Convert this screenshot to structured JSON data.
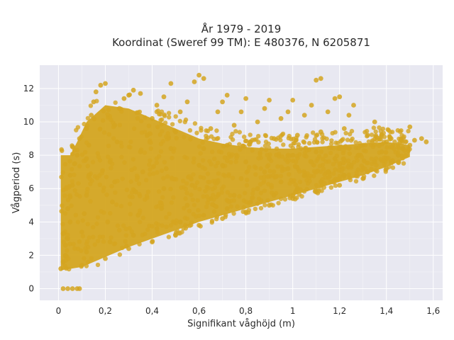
{
  "chart_data": {
    "type": "scatter",
    "title": "År 1979 - 2019",
    "subtitle": "Koordinat (Sweref 99 TM): E 480376, N 6205871",
    "xlabel": "Signifikant våghöjd (m)",
    "ylabel": "Vågperiod (s)",
    "xlim": [
      -0.08,
      1.64
    ],
    "ylim": [
      -0.7,
      13.4
    ],
    "x_ticks": [
      0,
      0.2,
      0.4,
      0.6,
      0.8,
      1,
      1.2,
      1.4,
      1.6
    ],
    "x_tick_labels": [
      "0",
      "0,2",
      "0,4",
      "0,6",
      "0,8",
      "1",
      "1,2",
      "1,4",
      "1,6"
    ],
    "y_ticks": [
      0,
      2,
      4,
      6,
      8,
      10,
      12
    ],
    "y_tick_labels": [
      "0",
      "2",
      "4",
      "6",
      "8",
      "10",
      "12"
    ],
    "grid": true,
    "background_color": "#e8e8f1",
    "marker_color": "#d4a520",
    "series": [
      {
        "points": [
          [
            0.02,
            0
          ],
          [
            0.04,
            0
          ],
          [
            0.06,
            0
          ],
          [
            0.08,
            0
          ],
          [
            0.09,
            0
          ],
          [
            0.01,
            1.2
          ],
          [
            0.02,
            1.6
          ],
          [
            0.03,
            2.0
          ],
          [
            0.03,
            2.6
          ],
          [
            0.04,
            3.0
          ],
          [
            0.02,
            3.3
          ],
          [
            0.05,
            4.0
          ],
          [
            0.04,
            4.8
          ],
          [
            0.05,
            5.5
          ],
          [
            0.06,
            6.2
          ],
          [
            0.05,
            6.8
          ],
          [
            0.07,
            7.5
          ],
          [
            0.08,
            8.0
          ],
          [
            0.06,
            8.5
          ],
          [
            0.09,
            9.0
          ],
          [
            0.1,
            1.4
          ],
          [
            0.12,
            2.2
          ],
          [
            0.1,
            3.4
          ],
          [
            0.11,
            4.5
          ],
          [
            0.12,
            5.6
          ],
          [
            0.13,
            6.8
          ],
          [
            0.12,
            7.8
          ],
          [
            0.13,
            8.6
          ],
          [
            0.12,
            9.6
          ],
          [
            0.14,
            10.4
          ],
          [
            0.15,
            11.2
          ],
          [
            0.16,
            11.8
          ],
          [
            0.18,
            12.2
          ],
          [
            0.2,
            12.3
          ],
          [
            0.2,
            1.8
          ],
          [
            0.22,
            2.8
          ],
          [
            0.21,
            4.0
          ],
          [
            0.23,
            5.2
          ],
          [
            0.24,
            6.4
          ],
          [
            0.22,
            7.6
          ],
          [
            0.25,
            8.8
          ],
          [
            0.24,
            9.8
          ],
          [
            0.26,
            10.8
          ],
          [
            0.28,
            11.4
          ],
          [
            0.3,
            11.6
          ],
          [
            0.32,
            11.9
          ],
          [
            0.35,
            11.7
          ],
          [
            0.3,
            2.4
          ],
          [
            0.32,
            3.2
          ],
          [
            0.34,
            4.4
          ],
          [
            0.33,
            5.8
          ],
          [
            0.36,
            7.0
          ],
          [
            0.35,
            8.2
          ],
          [
            0.38,
            9.2
          ],
          [
            0.4,
            10.2
          ],
          [
            0.42,
            11.0
          ],
          [
            0.45,
            11.5
          ],
          [
            0.48,
            12.3
          ],
          [
            0.4,
            2.8
          ],
          [
            0.42,
            3.6
          ],
          [
            0.44,
            4.8
          ],
          [
            0.45,
            6.0
          ],
          [
            0.46,
            7.2
          ],
          [
            0.48,
            8.4
          ],
          [
            0.5,
            9.4
          ],
          [
            0.52,
            10.6
          ],
          [
            0.55,
            11.2
          ],
          [
            0.58,
            12.4
          ],
          [
            0.6,
            12.8
          ],
          [
            0.62,
            12.6
          ],
          [
            0.5,
            3.2
          ],
          [
            0.52,
            4.0
          ],
          [
            0.55,
            5.0
          ],
          [
            0.57,
            6.2
          ],
          [
            0.6,
            7.4
          ],
          [
            0.62,
            8.4
          ],
          [
            0.65,
            9.6
          ],
          [
            0.68,
            10.6
          ],
          [
            0.7,
            11.2
          ],
          [
            0.72,
            11.6
          ],
          [
            0.6,
            3.8
          ],
          [
            0.62,
            4.4
          ],
          [
            0.65,
            5.4
          ],
          [
            0.68,
            6.4
          ],
          [
            0.7,
            7.4
          ],
          [
            0.72,
            8.6
          ],
          [
            0.75,
            9.8
          ],
          [
            0.78,
            10.6
          ],
          [
            0.8,
            11.4
          ],
          [
            0.7,
            4.2
          ],
          [
            0.72,
            4.8
          ],
          [
            0.75,
            5.6
          ],
          [
            0.78,
            6.6
          ],
          [
            0.8,
            7.6
          ],
          [
            0.82,
            8.8
          ],
          [
            0.85,
            10.0
          ],
          [
            0.88,
            10.8
          ],
          [
            0.9,
            11.3
          ],
          [
            0.8,
            4.6
          ],
          [
            0.82,
            5.2
          ],
          [
            0.85,
            6.0
          ],
          [
            0.88,
            7.0
          ],
          [
            0.9,
            7.8
          ],
          [
            0.92,
            9.0
          ],
          [
            0.95,
            10.2
          ],
          [
            0.98,
            10.6
          ],
          [
            1.0,
            11.3
          ],
          [
            0.9,
            5.0
          ],
          [
            0.92,
            5.6
          ],
          [
            0.95,
            6.4
          ],
          [
            0.98,
            7.2
          ],
          [
            1.0,
            8.0
          ],
          [
            1.02,
            9.2
          ],
          [
            1.05,
            10.4
          ],
          [
            1.08,
            11.0
          ],
          [
            1.1,
            12.5
          ],
          [
            1.12,
            12.6
          ],
          [
            1.0,
            5.4
          ],
          [
            1.02,
            6.0
          ],
          [
            1.05,
            6.8
          ],
          [
            1.08,
            7.6
          ],
          [
            1.1,
            8.2
          ],
          [
            1.12,
            9.4
          ],
          [
            1.15,
            10.6
          ],
          [
            1.18,
            11.4
          ],
          [
            1.2,
            11.5
          ],
          [
            1.1,
            5.8
          ],
          [
            1.12,
            6.4
          ],
          [
            1.15,
            7.0
          ],
          [
            1.18,
            7.8
          ],
          [
            1.2,
            8.4
          ],
          [
            1.22,
            9.6
          ],
          [
            1.24,
            10.4
          ],
          [
            1.26,
            11.0
          ],
          [
            1.2,
            6.2
          ],
          [
            1.22,
            6.8
          ],
          [
            1.25,
            7.4
          ],
          [
            1.28,
            8.0
          ],
          [
            1.3,
            8.6
          ],
          [
            1.32,
            9.2
          ],
          [
            1.35,
            10.0
          ],
          [
            1.3,
            6.6
          ],
          [
            1.32,
            7.0
          ],
          [
            1.35,
            7.6
          ],
          [
            1.38,
            8.2
          ],
          [
            1.4,
            8.8
          ],
          [
            1.42,
            9.0
          ],
          [
            1.4,
            7.2
          ],
          [
            1.42,
            7.6
          ],
          [
            1.45,
            8.0
          ],
          [
            1.47,
            8.4
          ],
          [
            1.5,
            8.6
          ],
          [
            1.52,
            8.9
          ],
          [
            1.55,
            9.0
          ],
          [
            1.57,
            8.8
          ],
          [
            1.5,
            9.7
          ]
        ]
      }
    ]
  }
}
